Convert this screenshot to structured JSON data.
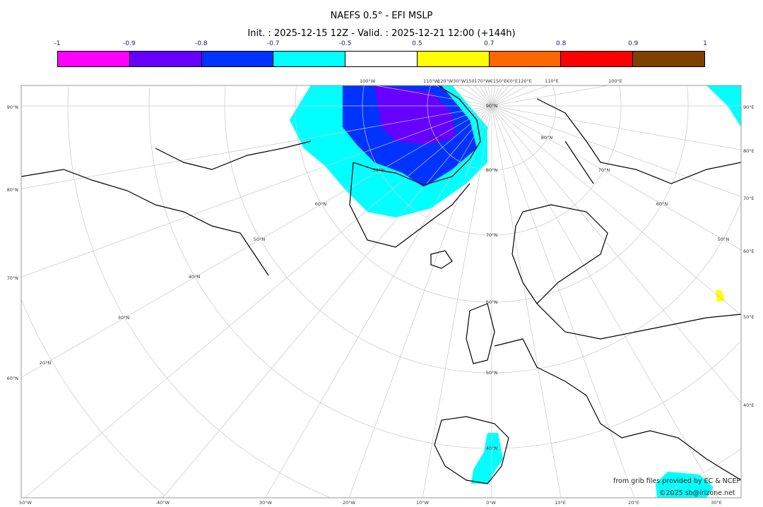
{
  "title": "NAEFS 0.5° - EFI MSLP",
  "subtitle": "Init. : 2025-12-15 12Z - Valid. : 2025-12-21 12:00 (+144h)",
  "colorbar": {
    "ticks": [
      "-1",
      "-0.9",
      "-0.8",
      "-0.7",
      "-0.5",
      "0.5",
      "0.7",
      "0.8",
      "0.9",
      "1"
    ],
    "colors": [
      "#ff00ff",
      "#6600ff",
      "#0033ff",
      "#00ffff",
      "#ffffff",
      "#ffff00",
      "#ff6600",
      "#ff0000",
      "#804000"
    ]
  },
  "map": {
    "left_labels": [
      "90°N",
      "80°N",
      "70°N",
      "60°N"
    ],
    "right_labels": [
      "90°E",
      "80°E",
      "70°E",
      "60°E",
      "50°E",
      "40°E"
    ],
    "bottom_labels": [
      "50°W",
      "40°W",
      "30°W",
      "20°W",
      "10°W",
      "0°W",
      "10°E",
      "20°E",
      "30°E"
    ],
    "top_labels": [
      "100°W",
      "110°W",
      "120°W30°W150170°W€150°E€0°E120°E",
      "110°E",
      "100°E"
    ],
    "inner_labels": [
      "90°N",
      "80°N",
      "70°N",
      "60°N",
      "50°N",
      "40°N",
      "30°N",
      "20°N",
      "80°N",
      "70°N",
      "60°N",
      "50°N",
      "40°N",
      "80°N",
      "70°N",
      "60°N",
      "50°N"
    ]
  },
  "credits": {
    "source": "from grib files provided by EC & NCEP",
    "copyright": "©2025 sb@irizone.net"
  }
}
